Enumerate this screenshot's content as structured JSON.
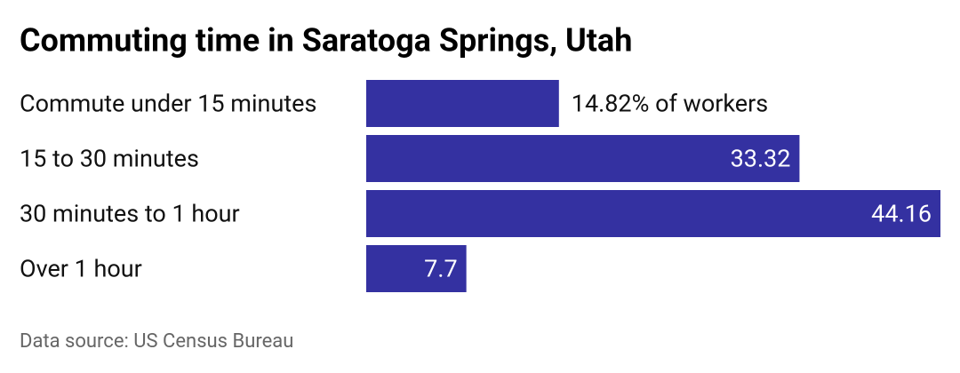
{
  "chart_data": {
    "type": "bar",
    "orientation": "horizontal",
    "title": "Commuting time in Saratoga Springs, Utah",
    "categories": [
      "Commute under 15 minutes",
      "15 to 30 minutes",
      "30 minutes to 1 hour",
      "Over 1 hour"
    ],
    "values": [
      14.82,
      33.32,
      44.16,
      7.7
    ],
    "value_labels": [
      "14.82% of workers",
      "33.32",
      "44.16",
      "7.7"
    ],
    "color": "#3431a1",
    "source": "Data source: US Census Bureau"
  }
}
